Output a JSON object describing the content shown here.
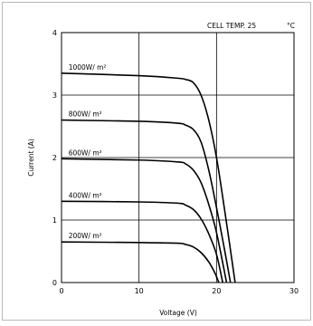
{
  "chart_data": {
    "type": "line",
    "annotation_left": "CELL TEMP. 25",
    "annotation_right": "°C",
    "xlabel": "Voltage (V)",
    "ylabel": "Current (A)",
    "xlim": [
      0,
      30
    ],
    "ylim": [
      0,
      4
    ],
    "xticks": [
      "0",
      "10",
      "20",
      "30"
    ],
    "yticks": [
      "0",
      "1",
      "2",
      "3",
      "4"
    ],
    "grid": true,
    "series": [
      {
        "name": "1000W/ m²",
        "x": [
          0,
          10,
          15,
          16,
          17,
          18,
          19,
          20,
          21,
          22,
          22.4
        ],
        "y": [
          3.35,
          3.31,
          3.27,
          3.25,
          3.2,
          3.0,
          2.6,
          2.0,
          1.2,
          0.35,
          0
        ]
      },
      {
        "name": "800W/ m²",
        "x": [
          0,
          10,
          15,
          16,
          17,
          18,
          19,
          20,
          21,
          21.8
        ],
        "y": [
          2.6,
          2.58,
          2.55,
          2.52,
          2.45,
          2.25,
          1.8,
          1.2,
          0.55,
          0
        ]
      },
      {
        "name": "600W/ m²",
        "x": [
          0,
          10,
          15,
          16,
          17,
          18,
          19,
          20,
          21.3
        ],
        "y": [
          1.98,
          1.96,
          1.93,
          1.9,
          1.8,
          1.6,
          1.25,
          0.8,
          0
        ]
      },
      {
        "name": "400W/ m²",
        "x": [
          0,
          10,
          15,
          16,
          17,
          18,
          19,
          20,
          20.8
        ],
        "y": [
          1.3,
          1.29,
          1.27,
          1.24,
          1.17,
          1.02,
          0.78,
          0.45,
          0
        ]
      },
      {
        "name": "200W/ m²",
        "x": [
          0,
          10,
          15,
          16,
          17,
          18,
          19,
          19.8,
          20.3
        ],
        "y": [
          0.65,
          0.64,
          0.63,
          0.61,
          0.57,
          0.48,
          0.33,
          0.15,
          0
        ]
      }
    ]
  }
}
